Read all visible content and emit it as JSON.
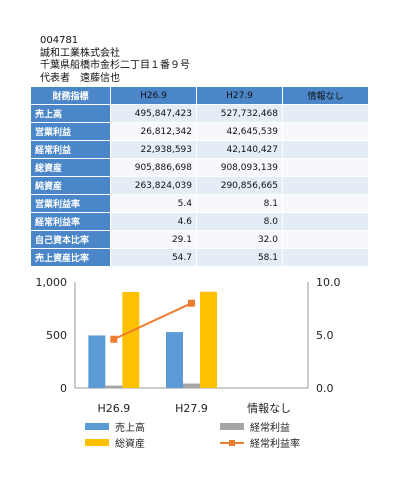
{
  "company": {
    "code": "004781",
    "name": "誠和工業株式会社",
    "address": "千葉県船橋市金杉二丁目１番９号",
    "representative": "代表者　遠藤信也"
  },
  "table": {
    "header": [
      "財務指標",
      "H26.9",
      "H27.9",
      "情報なし"
    ],
    "rows": [
      {
        "label": "売上高",
        "v1": "495,847,423",
        "v2": "527,732,468",
        "v3": ""
      },
      {
        "label": "営業利益",
        "v1": "26,812,342",
        "v2": "42,645,539",
        "v3": ""
      },
      {
        "label": "経常利益",
        "v1": "22,938,593",
        "v2": "42,140,427",
        "v3": ""
      },
      {
        "label": "総資産",
        "v1": "905,886,698",
        "v2": "908,093,139",
        "v3": ""
      },
      {
        "label": "純資産",
        "v1": "263,824,039",
        "v2": "290,856,665",
        "v3": ""
      },
      {
        "label": "営業利益率",
        "v1": "5.4",
        "v2": "8.1",
        "v3": ""
      },
      {
        "label": "経常利益率",
        "v1": "4.6",
        "v2": "8.0",
        "v3": ""
      },
      {
        "label": "自己資本比率",
        "v1": "29.1",
        "v2": "32.0",
        "v3": ""
      },
      {
        "label": "売上資産比率",
        "v1": "54.7",
        "v2": "58.1",
        "v3": ""
      }
    ]
  },
  "chart_data": {
    "type": "bar",
    "categories": [
      "H26.9",
      "H27.9",
      "情報なし"
    ],
    "ylim_left": [
      0,
      1000
    ],
    "ylim_right": [
      0,
      10
    ],
    "left_ticks": [
      "0",
      "500",
      "1,000"
    ],
    "right_ticks": [
      "0.0",
      "5.0",
      "10.0"
    ],
    "series": [
      {
        "name": "売上高",
        "type": "bar",
        "axis": "left",
        "color": "#5b9bd5",
        "values": [
          495.8,
          527.7,
          null
        ]
      },
      {
        "name": "経常利益",
        "type": "bar",
        "axis": "left",
        "color": "#a5a5a5",
        "values": [
          22.9,
          42.1,
          null
        ]
      },
      {
        "name": "総資産",
        "type": "bar",
        "axis": "left",
        "color": "#ffc000",
        "values": [
          905.9,
          908.1,
          null
        ]
      },
      {
        "name": "経常利益率",
        "type": "line",
        "axis": "right",
        "color": "#ed7d31",
        "values": [
          4.6,
          8.0,
          null
        ]
      }
    ],
    "legend_position": "bottom",
    "grid": false
  }
}
